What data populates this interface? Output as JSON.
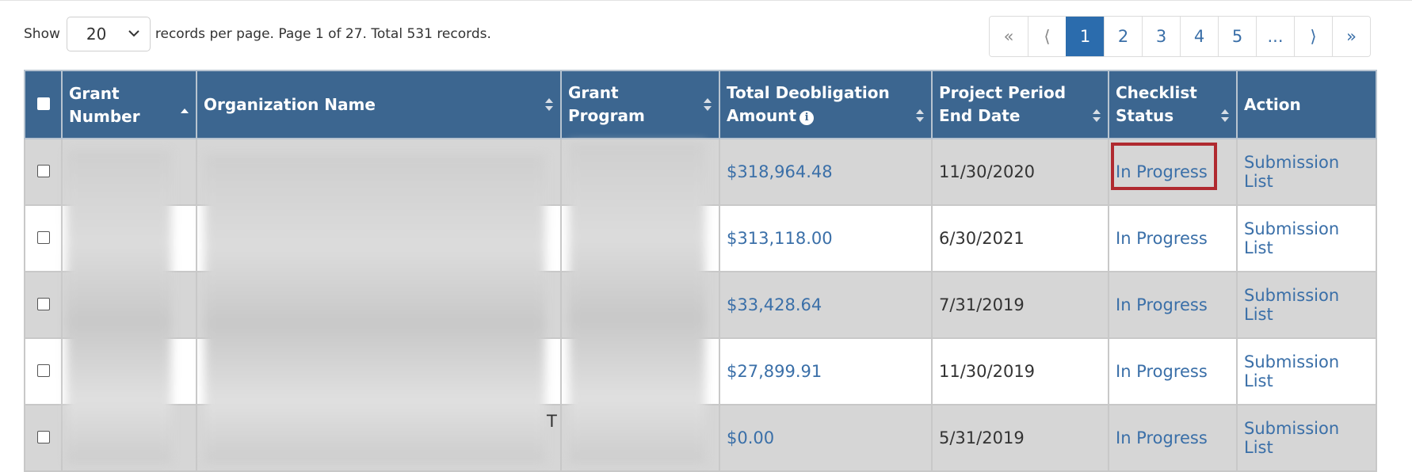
{
  "pager": {
    "show_label": "Show",
    "per_page_value": "20",
    "summary": "records per page. Page 1 of 27. Total 531 records."
  },
  "pagination": {
    "first": "«",
    "prev": "⟨",
    "pages": [
      "1",
      "2",
      "3",
      "4",
      "5"
    ],
    "active_page": "1",
    "ellipsis": "...",
    "next": "⟩",
    "last": "»"
  },
  "table": {
    "columns": {
      "grant_number": "Grant Number",
      "organization_name": "Organization Name",
      "grant_program": "Grant Program",
      "total_deobligation_amount": "Total Deobligation Amount",
      "project_period_end_date": "Project Period End Date",
      "checklist_status": "Checklist Status",
      "action": "Action"
    },
    "rows": [
      {
        "amount": "$318,964.48",
        "end_date": "11/30/2020",
        "status": "In Progress",
        "action": "Submission List"
      },
      {
        "amount": "$313,118.00",
        "end_date": "6/30/2021",
        "status": "In Progress",
        "action": "Submission List"
      },
      {
        "amount": "$33,428.64",
        "end_date": "7/31/2019",
        "status": "In Progress",
        "action": "Submission List"
      },
      {
        "amount": "$27,899.91",
        "end_date": "11/30/2019",
        "status": "In Progress",
        "action": "Submission List"
      },
      {
        "amount": "$0.00",
        "end_date": "5/31/2019",
        "status": "In Progress",
        "action": "Submission List"
      }
    ],
    "stray_char": "T"
  },
  "icons": {
    "select_chevron": "chevron-down-icon",
    "sort": "sort-icon",
    "sort_ascending": "sort-ascending-icon",
    "info": "info-icon"
  },
  "colors": {
    "header_bg": "#3c6690",
    "link": "#3a6fa8",
    "active_page_bg": "#2b6cad",
    "highlight_border": "#b02a30",
    "odd_row_bg": "#d6d6d6"
  }
}
